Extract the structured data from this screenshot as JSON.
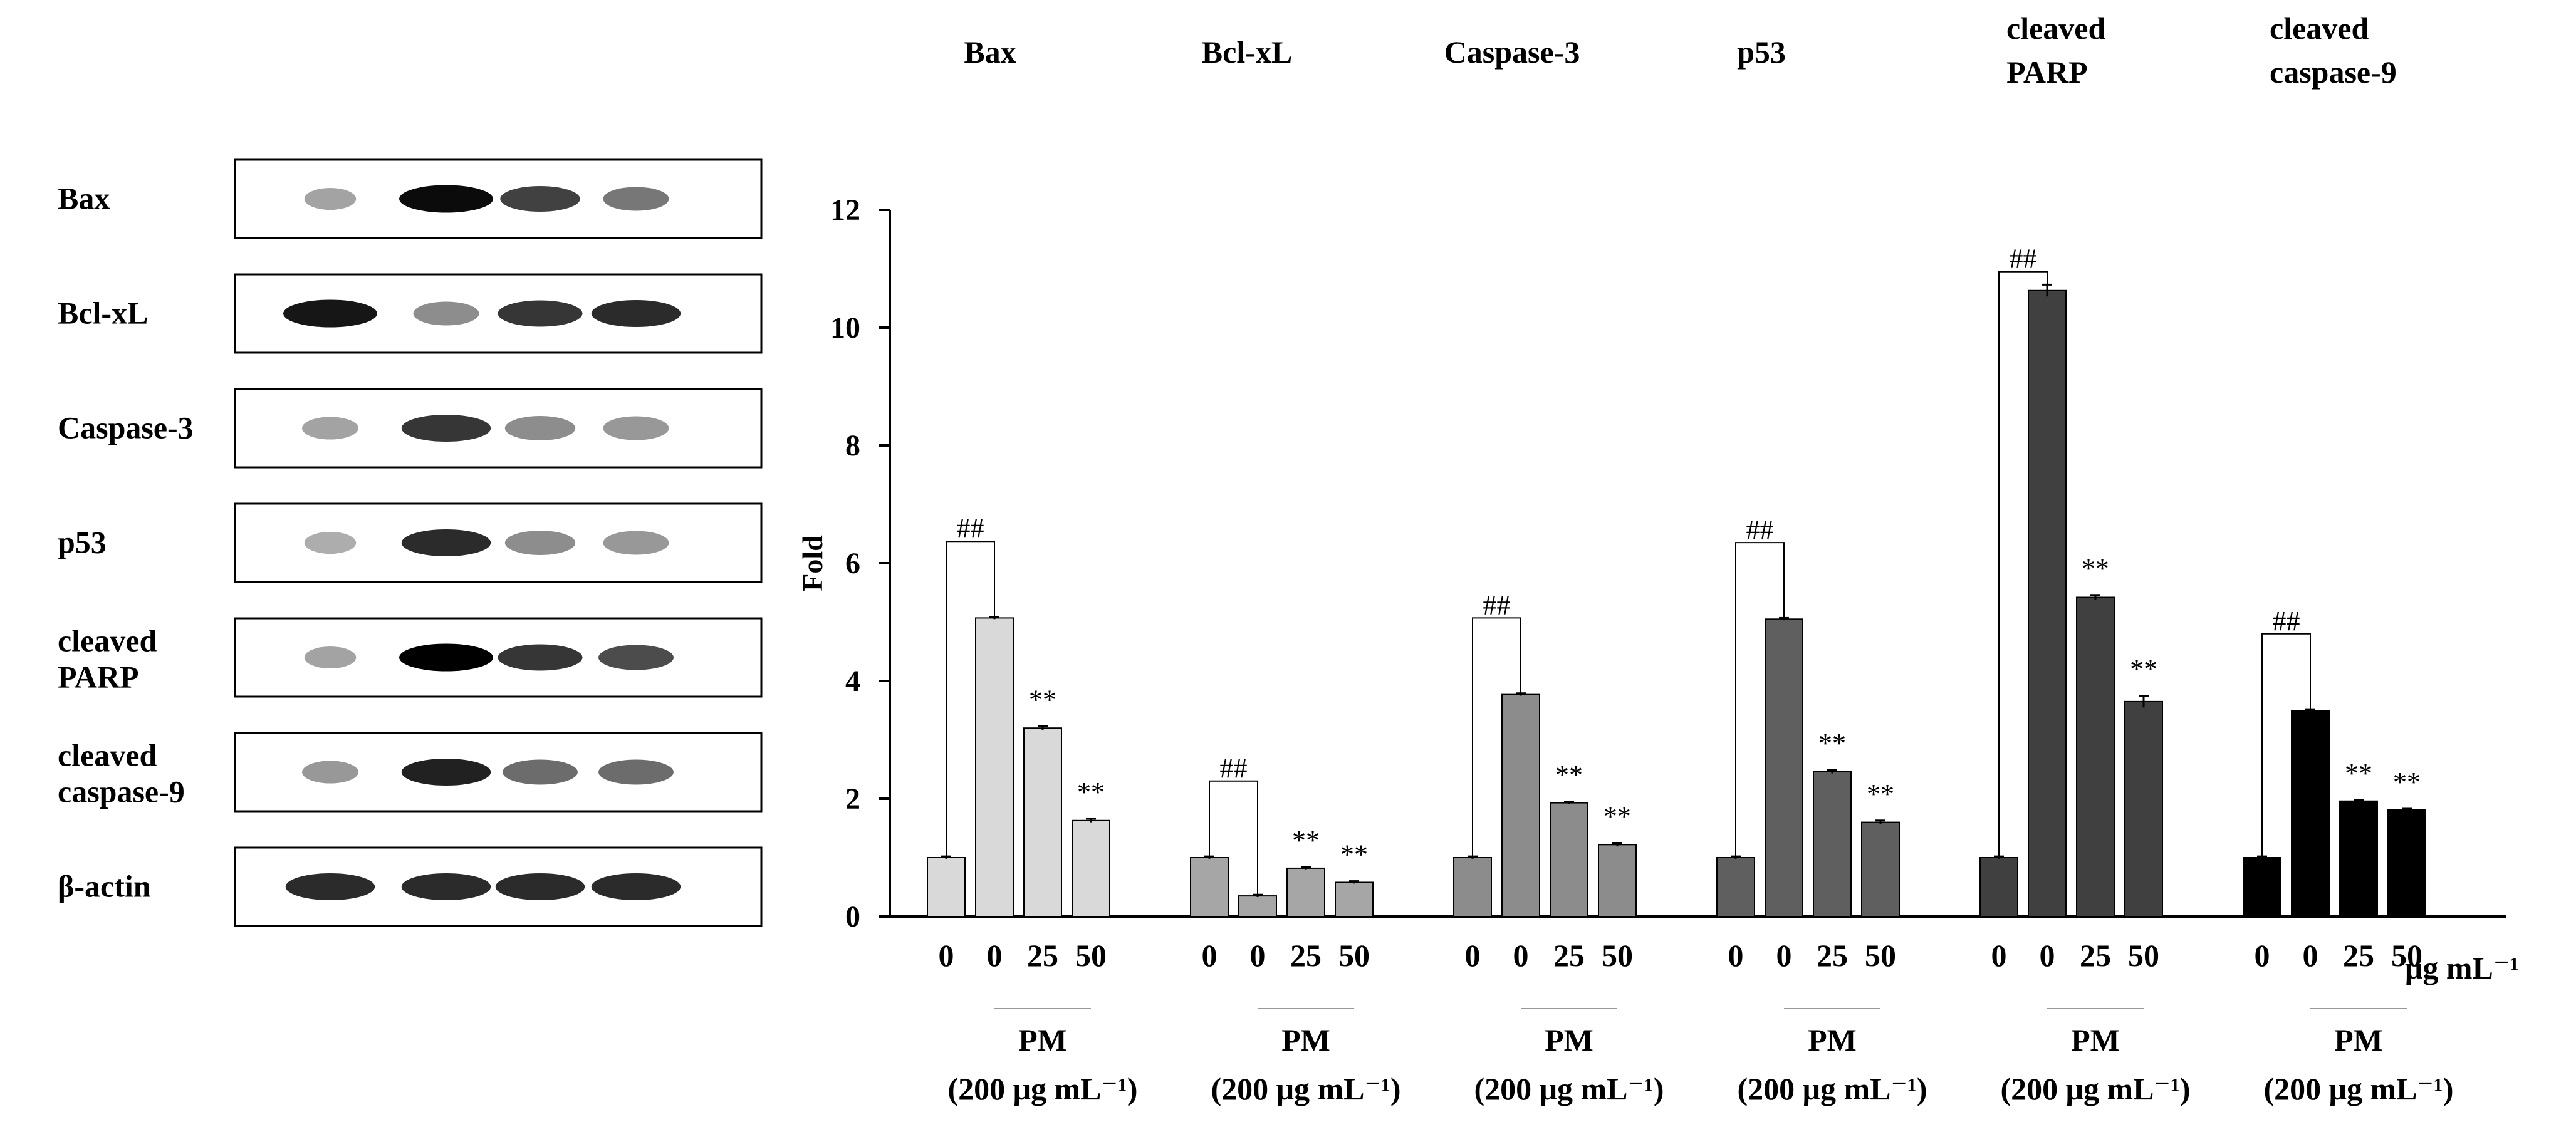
{
  "western_blot": {
    "rows": [
      {
        "label": [
          "Bax"
        ],
        "intensities": [
          0.25,
          0.95,
          0.7,
          0.45
        ],
        "sizes": [
          0.55,
          1.0,
          0.85,
          0.7
        ]
      },
      {
        "label": [
          "Bcl-xL"
        ],
        "intensities": [
          0.9,
          0.35,
          0.75,
          0.8
        ],
        "sizes": [
          1.0,
          0.7,
          0.9,
          0.95
        ]
      },
      {
        "label": [
          "Caspase-3"
        ],
        "intensities": [
          0.25,
          0.75,
          0.35,
          0.3
        ],
        "sizes": [
          0.6,
          0.95,
          0.75,
          0.7
        ]
      },
      {
        "label": [
          "p53"
        ],
        "intensities": [
          0.2,
          0.8,
          0.35,
          0.3
        ],
        "sizes": [
          0.55,
          0.95,
          0.75,
          0.7
        ]
      },
      {
        "label": [
          "cleaved",
          "PARP"
        ],
        "intensities": [
          0.25,
          1.0,
          0.75,
          0.65
        ],
        "sizes": [
          0.55,
          1.0,
          0.9,
          0.8
        ]
      },
      {
        "label": [
          "cleaved",
          "caspase-9"
        ],
        "intensities": [
          0.3,
          0.85,
          0.5,
          0.5
        ],
        "sizes": [
          0.6,
          0.95,
          0.8,
          0.8
        ]
      },
      {
        "label": [
          "β-actin"
        ],
        "intensities": [
          0.8,
          0.8,
          0.8,
          0.8
        ],
        "sizes": [
          0.95,
          0.95,
          0.95,
          0.95
        ]
      }
    ]
  },
  "chart_data": {
    "type": "bar",
    "ylabel": "Fold",
    "ylim": [
      0,
      12
    ],
    "yticks": [
      0,
      2,
      4,
      6,
      8,
      10,
      12
    ],
    "categories": [
      "0",
      "0",
      "25",
      "50"
    ],
    "x_unit": "μg mL⁻¹",
    "pm_label": "PM",
    "pm_dose": "(200 μg mL⁻¹)",
    "series": [
      {
        "name": [
          "Bax"
        ],
        "values": [
          1.0,
          5.07,
          3.2,
          1.63
        ],
        "errors": [
          0.02,
          0.02,
          0.03,
          0.03
        ],
        "color": "#d9d9d9",
        "sig": [
          "",
          "##",
          "**",
          "**"
        ]
      },
      {
        "name": [
          "Bcl-xL"
        ],
        "values": [
          1.0,
          0.35,
          0.82,
          0.58
        ],
        "errors": [
          0.02,
          0.02,
          0.02,
          0.02
        ],
        "color": "#a6a6a6",
        "sig": [
          "",
          "##",
          "**",
          "**"
        ]
      },
      {
        "name": [
          "Caspase-3"
        ],
        "values": [
          1.0,
          3.77,
          1.93,
          1.22
        ],
        "errors": [
          0.02,
          0.02,
          0.02,
          0.03
        ],
        "color": "#8c8c8c",
        "sig": [
          "",
          "##",
          "**",
          "**"
        ]
      },
      {
        "name": [
          "p53"
        ],
        "values": [
          1.0,
          5.05,
          2.46,
          1.6
        ],
        "errors": [
          0.02,
          0.02,
          0.03,
          0.03
        ],
        "color": "#5f5f5f",
        "sig": [
          "",
          "##",
          "**",
          "**"
        ]
      },
      {
        "name": [
          "cleaved",
          "PARP"
        ],
        "values": [
          1.0,
          10.63,
          5.42,
          3.65
        ],
        "errors": [
          0.02,
          0.1,
          0.04,
          0.1
        ],
        "color": "#404040",
        "sig": [
          "",
          "##",
          "**",
          "**"
        ]
      },
      {
        "name": [
          "cleaved",
          "caspase-9"
        ],
        "values": [
          1.0,
          3.5,
          1.96,
          1.81
        ],
        "errors": [
          0.02,
          0.02,
          0.02,
          0.02
        ],
        "color": "#000000",
        "sig": [
          "",
          "##",
          "**",
          "**"
        ]
      }
    ]
  }
}
